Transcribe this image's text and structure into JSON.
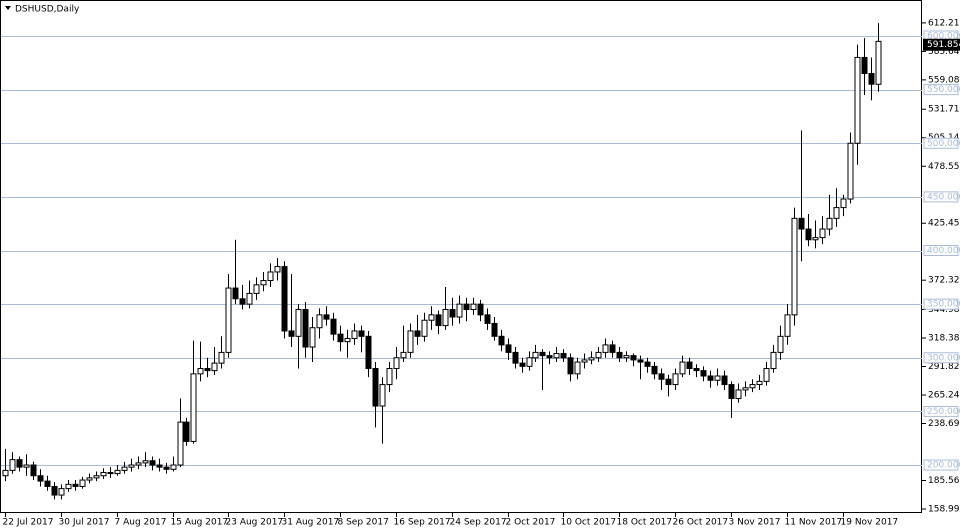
{
  "chart_data": {
    "type": "candlestick",
    "title": "DSHUSD,Daily",
    "categories": [
      "22 Jul 2017",
      null,
      null,
      null,
      null,
      null,
      null,
      null,
      "30 Jul 2017",
      null,
      null,
      null,
      null,
      null,
      null,
      null,
      "7 Aug 2017",
      null,
      null,
      null,
      null,
      null,
      null,
      null,
      "15 Aug 2017",
      null,
      null,
      null,
      null,
      null,
      null,
      null,
      "23 Aug 2017",
      null,
      null,
      null,
      null,
      null,
      null,
      null,
      "31 Aug 2017",
      null,
      null,
      null,
      null,
      null,
      null,
      null,
      "8 Sep 2017",
      null,
      null,
      null,
      null,
      null,
      null,
      null,
      "16 Sep 2017",
      null,
      null,
      null,
      null,
      null,
      null,
      null,
      "24 Sep 2017",
      null,
      null,
      null,
      null,
      null,
      null,
      null,
      "2 Oct 2017",
      null,
      null,
      null,
      null,
      null,
      null,
      null,
      "10 Oct 2017",
      null,
      null,
      null,
      null,
      null,
      null,
      null,
      "18 Oct 2017",
      null,
      null,
      null,
      null,
      null,
      null,
      null,
      "26 Oct 2017",
      null,
      null,
      null,
      null,
      null,
      null,
      null,
      "3 Nov 2017",
      null,
      null,
      null,
      null,
      null,
      null,
      null,
      "11 Nov 2017",
      null,
      null,
      null,
      null,
      null,
      null,
      null,
      "19 Nov 2017",
      null,
      null,
      null,
      null,
      null
    ],
    "values": [
      [
        190,
        215,
        185,
        195
      ],
      [
        195,
        212,
        192,
        205
      ],
      [
        205,
        208,
        194,
        198
      ],
      [
        198,
        210,
        190,
        200
      ],
      [
        200,
        203,
        186,
        190
      ],
      [
        190,
        196,
        180,
        185
      ],
      [
        185,
        190,
        176,
        180
      ],
      [
        180,
        184,
        168,
        172
      ],
      [
        172,
        182,
        168,
        178
      ],
      [
        178,
        186,
        175,
        182
      ],
      [
        182,
        186,
        176,
        180
      ],
      [
        180,
        189,
        178,
        186
      ],
      [
        186,
        192,
        183,
        188
      ],
      [
        188,
        194,
        185,
        190
      ],
      [
        190,
        197,
        187,
        193
      ],
      [
        193,
        198,
        188,
        192
      ],
      [
        192,
        200,
        190,
        195
      ],
      [
        195,
        203,
        192,
        198
      ],
      [
        198,
        206,
        194,
        200
      ],
      [
        200,
        208,
        196,
        202
      ],
      [
        202,
        212,
        198,
        204
      ],
      [
        204,
        208,
        195,
        200
      ],
      [
        200,
        206,
        194,
        198
      ],
      [
        198,
        202,
        192,
        196
      ],
      [
        196,
        208,
        194,
        200
      ],
      [
        200,
        262,
        198,
        240
      ],
      [
        240,
        244,
        218,
        222
      ],
      [
        222,
        316,
        220,
        285
      ],
      [
        285,
        315,
        278,
        290
      ],
      [
        290,
        300,
        282,
        288
      ],
      [
        288,
        310,
        284,
        295
      ],
      [
        295,
        320,
        290,
        305
      ],
      [
        305,
        378,
        300,
        365
      ],
      [
        365,
        410,
        350,
        355
      ],
      [
        355,
        368,
        345,
        350
      ],
      [
        350,
        372,
        346,
        360
      ],
      [
        360,
        375,
        354,
        368
      ],
      [
        368,
        380,
        362,
        372
      ],
      [
        372,
        388,
        366,
        380
      ],
      [
        380,
        393,
        372,
        385
      ],
      [
        385,
        390,
        318,
        325
      ],
      [
        325,
        378,
        310,
        320
      ],
      [
        320,
        350,
        290,
        345
      ],
      [
        345,
        352,
        300,
        310
      ],
      [
        310,
        338,
        296,
        328
      ],
      [
        328,
        346,
        318,
        340
      ],
      [
        340,
        348,
        330,
        336
      ],
      [
        336,
        342,
        316,
        322
      ],
      [
        322,
        330,
        306,
        315
      ],
      [
        315,
        326,
        300,
        318
      ],
      [
        318,
        332,
        312,
        325
      ],
      [
        325,
        330,
        305,
        320
      ],
      [
        320,
        325,
        282,
        290
      ],
      [
        290,
        296,
        235,
        255
      ],
      [
        255,
        282,
        220,
        275
      ],
      [
        275,
        296,
        268,
        290
      ],
      [
        290,
        310,
        280,
        300
      ],
      [
        300,
        330,
        296,
        305
      ],
      [
        305,
        332,
        300,
        325
      ],
      [
        325,
        340,
        312,
        320
      ],
      [
        320,
        342,
        315,
        335
      ],
      [
        335,
        348,
        326,
        340
      ],
      [
        340,
        344,
        322,
        330
      ],
      [
        330,
        366,
        326,
        345
      ],
      [
        345,
        356,
        330,
        338
      ],
      [
        338,
        358,
        332,
        350
      ],
      [
        350,
        356,
        334,
        345
      ],
      [
        345,
        356,
        340,
        350
      ],
      [
        350,
        354,
        334,
        340
      ],
      [
        340,
        346,
        326,
        332
      ],
      [
        332,
        338,
        316,
        320
      ],
      [
        320,
        326,
        306,
        312
      ],
      [
        312,
        318,
        298,
        305
      ],
      [
        305,
        310,
        290,
        295
      ],
      [
        295,
        300,
        286,
        292
      ],
      [
        292,
        306,
        288,
        300
      ],
      [
        300,
        312,
        296,
        305
      ],
      [
        305,
        308,
        270,
        302
      ],
      [
        302,
        306,
        294,
        300
      ],
      [
        300,
        310,
        296,
        304
      ],
      [
        304,
        308,
        296,
        300
      ],
      [
        300,
        304,
        278,
        285
      ],
      [
        285,
        300,
        280,
        296
      ],
      [
        296,
        304,
        290,
        298
      ],
      [
        298,
        306,
        294,
        300
      ],
      [
        300,
        310,
        296,
        305
      ],
      [
        305,
        318,
        300,
        312
      ],
      [
        312,
        316,
        300,
        305
      ],
      [
        305,
        310,
        296,
        300
      ],
      [
        300,
        306,
        296,
        302
      ],
      [
        302,
        304,
        292,
        298
      ],
      [
        298,
        302,
        280,
        296
      ],
      [
        296,
        300,
        286,
        292
      ],
      [
        292,
        296,
        280,
        285
      ],
      [
        285,
        290,
        270,
        280
      ],
      [
        280,
        284,
        264,
        275
      ],
      [
        275,
        290,
        270,
        285
      ],
      [
        285,
        302,
        282,
        296
      ],
      [
        296,
        300,
        284,
        290
      ],
      [
        290,
        294,
        282,
        288
      ],
      [
        288,
        292,
        278,
        283
      ],
      [
        283,
        288,
        272,
        279
      ],
      [
        279,
        290,
        274,
        283
      ],
      [
        283,
        288,
        270,
        275
      ],
      [
        275,
        278,
        244,
        262
      ],
      [
        262,
        276,
        258,
        270
      ],
      [
        270,
        278,
        264,
        272
      ],
      [
        272,
        280,
        268,
        275
      ],
      [
        275,
        284,
        270,
        278
      ],
      [
        278,
        296,
        274,
        290
      ],
      [
        290,
        312,
        286,
        305
      ],
      [
        305,
        330,
        298,
        320
      ],
      [
        320,
        350,
        312,
        340
      ],
      [
        340,
        440,
        330,
        430
      ],
      [
        430,
        512,
        390,
        420
      ],
      [
        420,
        434,
        404,
        410
      ],
      [
        410,
        428,
        402,
        412
      ],
      [
        412,
        432,
        406,
        420
      ],
      [
        420,
        452,
        414,
        430
      ],
      [
        430,
        458,
        422,
        440
      ],
      [
        440,
        452,
        432,
        448
      ],
      [
        448,
        510,
        444,
        500
      ],
      [
        500,
        592,
        480,
        580
      ],
      [
        580,
        598,
        545,
        565
      ],
      [
        565,
        580,
        540,
        555
      ],
      [
        555,
        612,
        548,
        595
      ]
    ],
    "up_color": "#ffffff",
    "down_color": "#000000",
    "level_color": "#a9bcd8",
    "ylim": [
      153.4,
      626.1
    ],
    "yticks": [
      {
        "value": 612.21,
        "label": "612.210"
      },
      585.645,
      {
        "value": 559.08,
        "label": "559.080"
      },
      531.715,
      505.145,
      478.555,
      {
        "value": 425.45,
        "label": "425.450"
      },
      {
        "value": 372.32,
        "label": "372.320"
      },
      344.985,
      318.385,
      291.825,
      265.245,
      {
        "value": 238.69,
        "label": "238.690"
      },
      {
        "value": 185.56,
        "label": "185.560"
      },
      158.995
    ],
    "levels": [
      {
        "value": 600,
        "label": "600.000"
      },
      {
        "value": 550,
        "label": "550.000"
      },
      {
        "value": 500,
        "label": "500.000"
      },
      {
        "value": 450,
        "label": "450.000"
      },
      {
        "value": 400,
        "label": "400.000"
      },
      {
        "value": 350,
        "label": "350.000"
      },
      {
        "value": 300,
        "label": "300.000"
      },
      {
        "value": 250,
        "label": "250.000"
      },
      {
        "value": 200,
        "label": "200.000"
      }
    ],
    "current_price": 591.854
  }
}
